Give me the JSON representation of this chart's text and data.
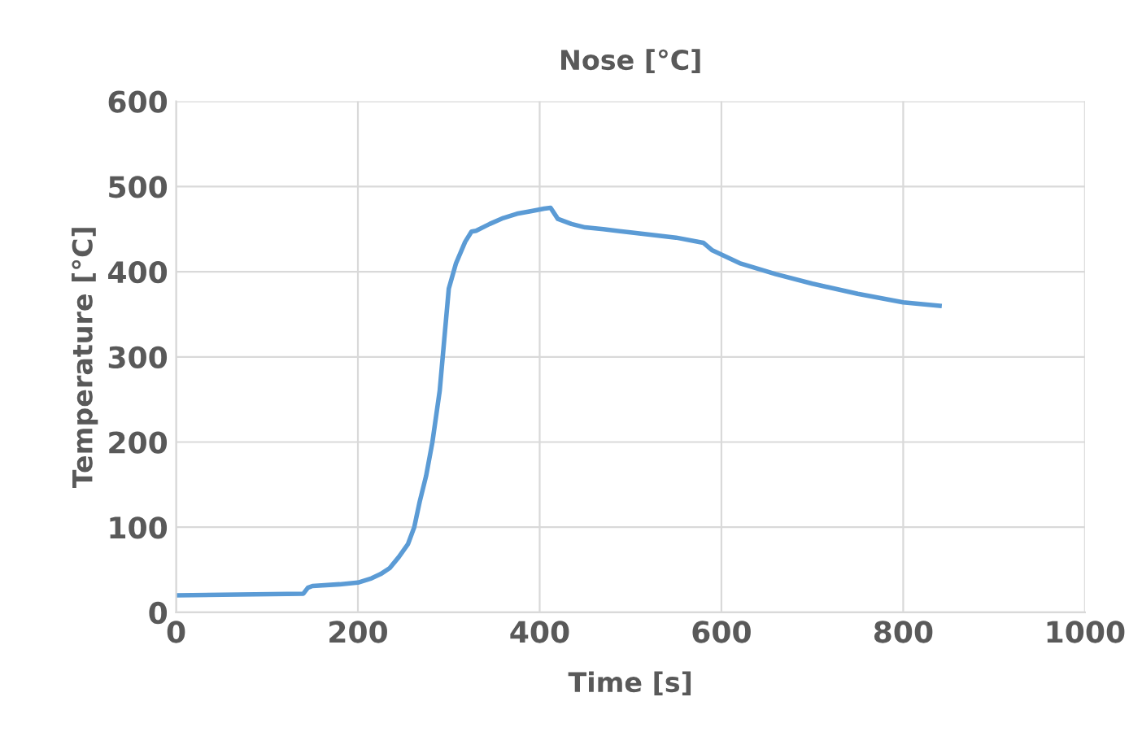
{
  "chart_data": {
    "type": "line",
    "title": "Nose [°C]",
    "xlabel": "Time [s]",
    "ylabel": "Temperature [°C]",
    "xlim": [
      0,
      1000
    ],
    "xticks": [
      0,
      200,
      400,
      600,
      800,
      1000
    ],
    "ylim": [
      0,
      600
    ],
    "yticks": [
      0,
      100,
      200,
      300,
      400,
      500,
      600
    ],
    "grid": true,
    "marker": "none",
    "line_style": "solid",
    "series": [
      {
        "color": "#5b9bd5",
        "x": [
          0,
          140,
          145,
          150,
          180,
          200,
          215,
          225,
          235,
          245,
          255,
          262,
          268,
          275,
          282,
          290,
          295,
          300,
          308,
          318,
          325,
          330,
          345,
          360,
          375,
          390,
          405,
          412,
          420,
          435,
          450,
          470,
          500,
          550,
          580,
          590,
          620,
          660,
          700,
          750,
          800,
          840
        ],
        "values": [
          20,
          22,
          29,
          31,
          33,
          35,
          40,
          45,
          52,
          65,
          80,
          100,
          130,
          160,
          200,
          260,
          320,
          380,
          410,
          435,
          447,
          448,
          456,
          463,
          468,
          471,
          474,
          475,
          462,
          456,
          452,
          450,
          446,
          440,
          434,
          425,
          410,
          397,
          386,
          374,
          364,
          360
        ]
      }
    ]
  }
}
